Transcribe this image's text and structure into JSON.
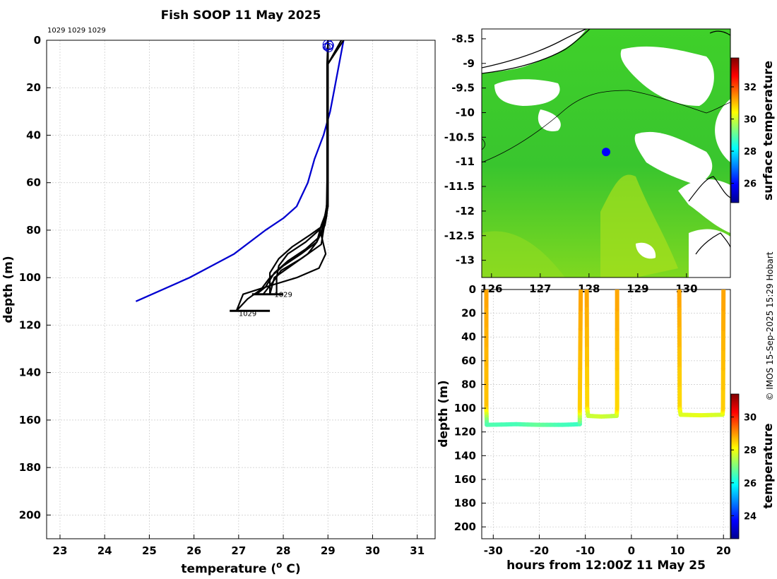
{
  "chart_data": [
    {
      "id": "profile",
      "type": "line",
      "title": "Fish SOOP 11 May 2025",
      "xlabel": "temperature (°C)",
      "xlabel_main": "temperature (",
      "xlabel_deg": "o",
      "xlabel_unit": " C)",
      "ylabel": "depth (m)",
      "xlim": [
        22.7,
        31.4
      ],
      "ylim": [
        210,
        0
      ],
      "xticks": [
        23,
        24,
        25,
        26,
        27,
        28,
        29,
        30,
        31
      ],
      "yticks": [
        0,
        20,
        40,
        60,
        80,
        100,
        120,
        140,
        160,
        180,
        200
      ],
      "grid": true,
      "id_label": "1029 1029 1029",
      "profile_labels": [
        {
          "text": "1029",
          "x": 27.8,
          "y": 107
        },
        {
          "text": "1029",
          "x": 27.0,
          "y": 115
        }
      ],
      "series": [
        {
          "name": "climatology",
          "color": "#0000d0",
          "x": [
            29.35,
            29.25,
            29.15,
            29.05,
            28.9,
            28.7,
            28.55,
            28.3,
            28.0,
            27.6,
            26.9,
            25.9,
            24.7
          ],
          "y": [
            0,
            10,
            20,
            30,
            40,
            50,
            60,
            70,
            75,
            80,
            90,
            100,
            110
          ]
        },
        {
          "name": "profile-1",
          "color": "#000000",
          "x": [
            29.35,
            29.0,
            29.0,
            29.0,
            28.98,
            28.95,
            28.9,
            28.6,
            28.2,
            27.9,
            27.7,
            27.7
          ],
          "y": [
            0,
            10,
            40,
            60,
            72,
            75,
            78,
            82,
            87,
            92,
            98,
            107
          ]
        },
        {
          "name": "profile-2",
          "color": "#000000",
          "x": [
            29.3,
            29.0,
            29.0,
            29.0,
            28.95,
            28.9,
            28.8,
            28.5,
            28.1,
            27.9,
            27.85,
            27.85
          ],
          "y": [
            0,
            10,
            40,
            65,
            73,
            77,
            80,
            85,
            90,
            95,
            100,
            107
          ]
        },
        {
          "name": "profile-3",
          "color": "#000000",
          "x": [
            29.0,
            29.0,
            29.0,
            29.0,
            28.97,
            28.93,
            28.75,
            28.55,
            28.1,
            27.8,
            27.7
          ],
          "y": [
            0,
            10,
            40,
            68,
            74,
            78,
            85,
            90,
            96,
            100,
            107
          ]
        },
        {
          "name": "profile-4",
          "color": "#000000",
          "x": [
            29.0,
            28.98,
            28.98,
            28.98,
            28.96,
            28.9,
            28.85,
            28.95,
            28.8,
            28.3,
            27.6,
            27.4
          ],
          "y": [
            0,
            10,
            40,
            68,
            72,
            76,
            82,
            90,
            96,
            100,
            104,
            107
          ]
        },
        {
          "name": "profile-5",
          "color": "#000000",
          "x": [
            29.0,
            29.0,
            29.0,
            29.0,
            28.95,
            28.9,
            28.8,
            28.5,
            28.1,
            27.8,
            27.6,
            27.1,
            26.95
          ],
          "y": [
            0,
            10,
            40,
            70,
            74,
            78,
            83,
            88,
            93,
            98,
            104,
            107,
            114
          ]
        },
        {
          "name": "profile-6",
          "color": "#000000",
          "x": [
            29.0,
            29.0,
            29.0,
            28.97,
            28.93,
            28.85,
            28.75,
            28.4,
            28.0,
            27.7,
            27.5,
            27.2,
            26.95
          ],
          "y": [
            0,
            10,
            40,
            70,
            74,
            78,
            85,
            90,
            95,
            100,
            105,
            109,
            114
          ]
        },
        {
          "name": "profile-7",
          "color": "#000000",
          "x": [
            29.0,
            29.0,
            29.0,
            29.0,
            28.95,
            28.9,
            28.85,
            28.4,
            27.95,
            27.8,
            27.55
          ],
          "y": [
            0,
            10,
            40,
            70,
            75,
            80,
            86,
            92,
            97,
            101,
            107
          ]
        }
      ],
      "bottom_lines": [
        {
          "x1": 27.3,
          "x2": 28.0,
          "y": 107
        },
        {
          "x1": 26.8,
          "x2": 27.7,
          "y": 114
        }
      ],
      "start_markers": {
        "x": 29.0,
        "y": 1,
        "color": "#0000d0"
      }
    },
    {
      "id": "map",
      "type": "heatmap",
      "colorbar_label": "surface temperature",
      "colorbar_range": [
        24.8,
        33.8
      ],
      "colorbar_ticks": [
        26,
        28,
        30,
        32
      ],
      "xlim": [
        125.8,
        130.9
      ],
      "ylim": [
        -13.35,
        -8.3
      ],
      "xticks": [
        126,
        127,
        128,
        129,
        130
      ],
      "xtick_labels": [
        "126",
        "127",
        "128",
        "129",
        "130"
      ],
      "yticks": [
        -8.5,
        -9,
        -9.5,
        -10,
        -10.5,
        -11,
        -11.5,
        -12,
        -12.5,
        -13
      ],
      "ship_position": {
        "lon": 128.35,
        "lat": -10.8,
        "color": "#0000ff"
      },
      "land_color": "#ffffff",
      "dominant_sst": "28-30"
    },
    {
      "id": "depth-time",
      "type": "scatter",
      "xlabel": "hours from 12:00Z 11 May 25",
      "ylabel": "depth (m)",
      "xlim": [
        -32.5,
        21.5
      ],
      "ylim": [
        210,
        0
      ],
      "xticks": [
        -30,
        -20,
        -10,
        0,
        10,
        20
      ],
      "yticks": [
        0,
        20,
        40,
        60,
        80,
        100,
        120,
        140,
        160,
        180,
        200
      ],
      "colorbar_label": "temperature",
      "colorbar_range": [
        22.6,
        31.4
      ],
      "colorbar_ticks": [
        24,
        26,
        28,
        30
      ],
      "tracks": [
        {
          "x": [
            -31.5,
            -31.5,
            -31.4,
            -25,
            -20,
            -15,
            -11.2,
            -11.2,
            -11.0
          ],
          "y": [
            0,
            100,
            114,
            113.5,
            114,
            114,
            113.5,
            100,
            0
          ],
          "temp": [
            28.9,
            28.6,
            26.6,
            26.5,
            26.8,
            26.5,
            26.4,
            28.5,
            28.9
          ]
        },
        {
          "x": [
            -9.7,
            -9.6,
            -9.4,
            -6.5,
            -3.2,
            -3.1,
            -3.1
          ],
          "y": [
            0,
            100,
            106.5,
            107,
            106.5,
            100,
            0
          ],
          "temp": [
            28.9,
            28.4,
            27.6,
            27.7,
            27.5,
            28.4,
            28.9
          ]
        },
        {
          "x": [
            10.4,
            10.5,
            10.7,
            15,
            19.8,
            19.9,
            20.0
          ],
          "y": [
            0,
            100,
            105.5,
            106,
            105.5,
            100,
            0
          ],
          "temp": [
            28.9,
            28.4,
            27.8,
            27.9,
            27.7,
            28.5,
            28.9
          ]
        }
      ]
    }
  ],
  "credit": "© IMOS 15-Sep-2025 15:29 Hobart"
}
